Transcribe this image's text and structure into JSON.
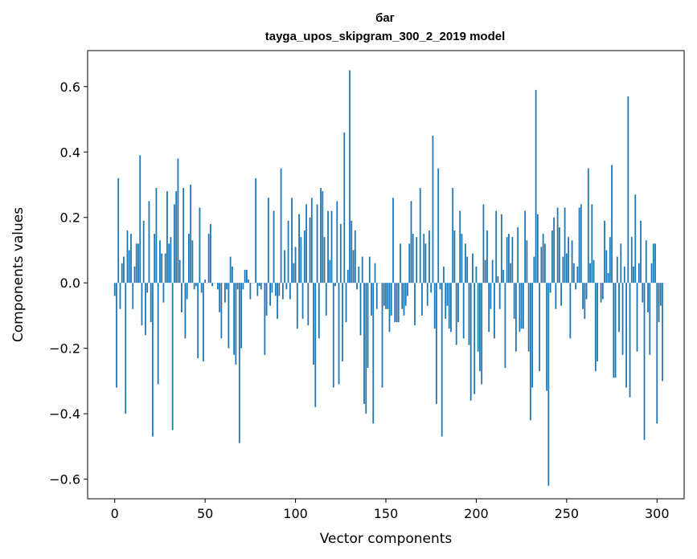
{
  "chart_data": {
    "type": "bar",
    "title": "баг",
    "subtitle": "tayga_upos_skipgram_300_2_2019 model",
    "xlabel": "Vector components",
    "ylabel": "Components values",
    "xlim": [
      -15,
      315
    ],
    "ylim": [
      -0.66,
      0.71
    ],
    "xticks": [
      0,
      50,
      100,
      150,
      200,
      250,
      300
    ],
    "yticks": [
      -0.6,
      -0.4,
      -0.2,
      0.0,
      0.2,
      0.4,
      0.6
    ],
    "xtick_labels": [
      "0",
      "50",
      "100",
      "150",
      "200",
      "250",
      "300"
    ],
    "ytick_labels": [
      "−0.6",
      "−0.4",
      "−0.2",
      "0.0",
      "0.2",
      "0.4",
      "0.6"
    ],
    "grid": false,
    "bar_color": "#1f77b4",
    "x_start": 0,
    "values": [
      -0.04,
      -0.32,
      0.32,
      -0.08,
      0.06,
      0.08,
      -0.4,
      0.16,
      0.1,
      0.15,
      -0.08,
      0.05,
      0.12,
      0.12,
      0.39,
      -0.13,
      0.19,
      -0.16,
      -0.03,
      0.25,
      -0.12,
      -0.47,
      0.15,
      0.29,
      -0.31,
      0.13,
      0.09,
      -0.06,
      0.09,
      0.28,
      0.12,
      0.14,
      -0.45,
      0.24,
      0.28,
      0.38,
      0.07,
      -0.09,
      0.29,
      -0.17,
      -0.05,
      0.15,
      0.3,
      0.13,
      -0.02,
      -0.01,
      -0.23,
      0.23,
      -0.03,
      -0.24,
      0.01,
      0.0,
      0.15,
      0.18,
      -0.01,
      0.0,
      0.0,
      -0.02,
      -0.09,
      -0.17,
      0.0,
      -0.06,
      -0.02,
      -0.2,
      0.08,
      0.05,
      -0.22,
      -0.25,
      -0.02,
      -0.49,
      -0.2,
      -0.02,
      0.04,
      0.04,
      0.01,
      -0.05,
      0.0,
      0.0,
      0.32,
      -0.04,
      -0.01,
      -0.02,
      0.0,
      -0.22,
      -0.1,
      0.26,
      -0.07,
      -0.03,
      0.22,
      -0.04,
      -0.11,
      -0.04,
      0.35,
      -0.05,
      0.1,
      -0.02,
      0.19,
      -0.05,
      0.26,
      0.06,
      0.11,
      -0.14,
      0.21,
      0.14,
      -0.11,
      0.16,
      0.24,
      -0.13,
      0.2,
      0.26,
      -0.25,
      -0.38,
      0.24,
      -0.17,
      0.29,
      0.28,
      0.14,
      -0.1,
      0.22,
      0.07,
      0.22,
      -0.32,
      -0.01,
      0.25,
      -0.31,
      0.18,
      -0.24,
      0.46,
      -0.12,
      0.04,
      0.65,
      0.19,
      0.1,
      0.16,
      -0.02,
      0.05,
      -0.16,
      0.08,
      -0.37,
      -0.4,
      -0.26,
      0.08,
      -0.1,
      -0.43,
      0.06,
      -0.08,
      0.0,
      0.0,
      -0.32,
      -0.07,
      -0.08,
      -0.08,
      -0.15,
      -0.1,
      0.26,
      -0.12,
      -0.12,
      -0.12,
      0.12,
      -0.08,
      -0.1,
      -0.07,
      -0.04,
      0.12,
      0.25,
      0.15,
      -0.13,
      0.14,
      0.0,
      0.29,
      -0.1,
      0.15,
      0.12,
      -0.07,
      0.16,
      -0.03,
      0.45,
      -0.14,
      -0.37,
      0.35,
      -0.02,
      -0.47,
      0.05,
      -0.11,
      -0.07,
      -0.14,
      -0.15,
      0.29,
      0.16,
      -0.19,
      -0.12,
      0.22,
      0.15,
      -0.17,
      0.12,
      0.08,
      -0.19,
      -0.36,
      0.09,
      -0.34,
      0.05,
      -0.21,
      -0.27,
      -0.31,
      0.24,
      0.07,
      0.16,
      -0.15,
      -0.08,
      0.07,
      -0.17,
      0.22,
      0.02,
      -0.08,
      0.21,
      0.04,
      -0.26,
      0.14,
      0.15,
      0.06,
      0.14,
      -0.11,
      -0.21,
      0.17,
      -0.15,
      -0.14,
      -0.14,
      0.22,
      0.13,
      -0.21,
      -0.42,
      -0.32,
      0.08,
      0.59,
      0.21,
      -0.27,
      0.11,
      0.15,
      0.12,
      -0.33,
      -0.62,
      -0.03,
      0.16,
      0.2,
      -0.08,
      0.23,
      0.17,
      -0.07,
      0.08,
      0.23,
      0.09,
      0.14,
      -0.17,
      0.13,
      0.06,
      -0.02,
      0.05,
      0.23,
      0.24,
      -0.08,
      -0.11,
      -0.05,
      0.35,
      0.06,
      0.24,
      0.07,
      -0.27,
      -0.24,
      0.0,
      -0.06,
      -0.05,
      0.19,
      0.1,
      0.03,
      0.14,
      0.36,
      -0.29,
      -0.29,
      0.08,
      -0.15,
      0.12,
      -0.22,
      0.05,
      -0.32,
      0.57,
      -0.35,
      0.14,
      0.05,
      0.27,
      -0.21,
      0.06,
      0.19,
      -0.06,
      -0.48,
      0.13,
      -0.09,
      -0.22,
      0.06,
      0.12,
      0.12,
      -0.43,
      -0.12,
      -0.07,
      -0.3,
      0.0
    ]
  }
}
